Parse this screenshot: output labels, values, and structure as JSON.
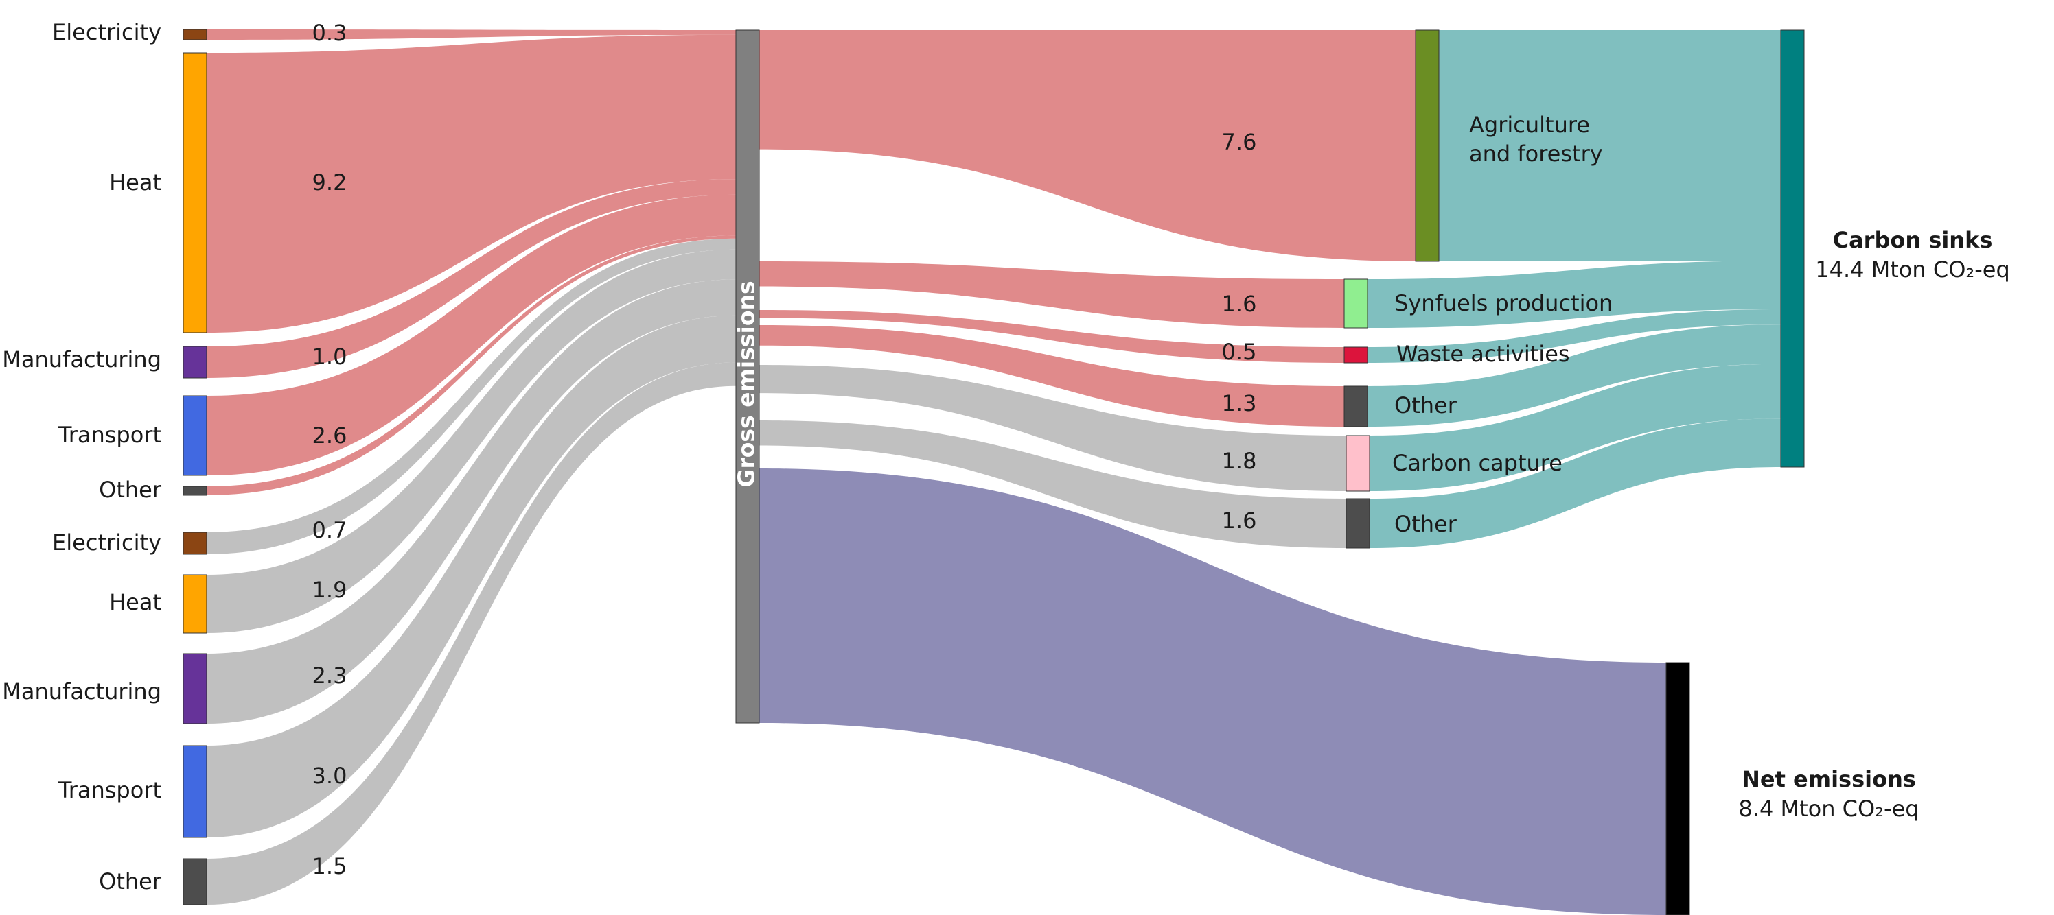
{
  "chart_data": {
    "type": "sankey",
    "unit": "Mton CO2-eq",
    "nodes": [
      {
        "id": "src_elec_1",
        "label": "Electricity",
        "color": "#8B4513"
      },
      {
        "id": "src_heat_1",
        "label": "Heat",
        "color": "#FFA500"
      },
      {
        "id": "src_manu_1",
        "label": "Manufacturing",
        "color": "#663399"
      },
      {
        "id": "src_trans_1",
        "label": "Transport",
        "color": "#4169E1"
      },
      {
        "id": "src_other_1",
        "label": "Other",
        "color": "#4D4D4D"
      },
      {
        "id": "src_elec_2",
        "label": "Electricity",
        "color": "#8B4513"
      },
      {
        "id": "src_heat_2",
        "label": "Heat",
        "color": "#FFA500"
      },
      {
        "id": "src_manu_2",
        "label": "Manufacturing",
        "color": "#663399"
      },
      {
        "id": "src_trans_2",
        "label": "Transport",
        "color": "#4169E1"
      },
      {
        "id": "src_other_2",
        "label": "Other",
        "color": "#4D4D4D"
      },
      {
        "id": "gross",
        "label": "Gross emissions",
        "color": "#808080"
      },
      {
        "id": "agri",
        "label": "Agriculture\nand forestry",
        "color": "#6B8E23"
      },
      {
        "id": "synfuel",
        "label": "Synfuels production",
        "color": "#90EE90"
      },
      {
        "id": "waste",
        "label": "Waste activities",
        "color": "#DC143C"
      },
      {
        "id": "other_a",
        "label": "Other",
        "color": "#4D4D4D"
      },
      {
        "id": "capture",
        "label": "Carbon capture",
        "color": "#FFC0CB"
      },
      {
        "id": "other_b",
        "label": "Other",
        "color": "#4D4D4D"
      },
      {
        "id": "sinks",
        "label": "Carbon sinks",
        "sublabel": "14.4 Mton CO₂-eq",
        "color": "#008080"
      },
      {
        "id": "net",
        "label": "Net emissions",
        "sublabel": "8.4 Mton CO₂-eq",
        "color": "#000000"
      }
    ],
    "links": [
      {
        "source": "src_elec_1",
        "target": "gross",
        "value": 0.3,
        "label": "0.3",
        "color": "#E08A8B"
      },
      {
        "source": "src_heat_1",
        "target": "gross",
        "value": 9.2,
        "label": "9.2",
        "color": "#E08A8B"
      },
      {
        "source": "src_manu_1",
        "target": "gross",
        "value": 1.0,
        "label": "1.0",
        "color": "#E08A8B"
      },
      {
        "source": "src_trans_1",
        "target": "gross",
        "value": 2.6,
        "label": "2.6",
        "color": "#E08A8B"
      },
      {
        "source": "src_other_1",
        "target": "gross",
        "value": 0.2,
        "label": "",
        "color": "#E08A8B"
      },
      {
        "source": "src_elec_2",
        "target": "gross",
        "value": 0.7,
        "label": "0.7",
        "color": "#C0C0C0"
      },
      {
        "source": "src_heat_2",
        "target": "gross",
        "value": 1.9,
        "label": "1.9",
        "color": "#C0C0C0"
      },
      {
        "source": "src_manu_2",
        "target": "gross",
        "value": 2.3,
        "label": "2.3",
        "color": "#C0C0C0"
      },
      {
        "source": "src_trans_2",
        "target": "gross",
        "value": 3.0,
        "label": "3.0",
        "color": "#C0C0C0"
      },
      {
        "source": "src_other_2",
        "target": "gross",
        "value": 1.5,
        "label": "1.5",
        "color": "#C0C0C0"
      },
      {
        "source": "gross",
        "target": "agri",
        "value": 7.6,
        "label": "7.6",
        "color": "#E08A8B"
      },
      {
        "source": "gross",
        "target": "synfuel",
        "value": 1.6,
        "label": "1.6",
        "color": "#E08A8B"
      },
      {
        "source": "gross",
        "target": "waste",
        "value": 0.5,
        "label": "0.5",
        "color": "#E08A8B"
      },
      {
        "source": "gross",
        "target": "other_a",
        "value": 1.3,
        "label": "1.3",
        "color": "#E08A8B"
      },
      {
        "source": "gross",
        "target": "capture",
        "value": 1.8,
        "label": "1.8",
        "color": "#C0C0C0"
      },
      {
        "source": "gross",
        "target": "other_b",
        "value": 1.6,
        "label": "1.6",
        "color": "#C0C0C0"
      },
      {
        "source": "gross",
        "target": "net",
        "value": 8.4,
        "label": "",
        "color": "#8E8CB6"
      },
      {
        "source": "agri",
        "target": "sinks",
        "value": 7.6,
        "label": "",
        "color": "#80BFBF"
      },
      {
        "source": "synfuel",
        "target": "sinks",
        "value": 1.6,
        "label": "",
        "color": "#80BFBF"
      },
      {
        "source": "waste",
        "target": "sinks",
        "value": 0.5,
        "label": "",
        "color": "#80BFBF"
      },
      {
        "source": "other_a",
        "target": "sinks",
        "value": 1.3,
        "label": "",
        "color": "#80BFBF"
      },
      {
        "source": "capture",
        "target": "sinks",
        "value": 1.8,
        "label": "",
        "color": "#80BFBF"
      },
      {
        "source": "other_b",
        "target": "sinks",
        "value": 1.6,
        "label": "",
        "color": "#80BFBF"
      }
    ]
  }
}
